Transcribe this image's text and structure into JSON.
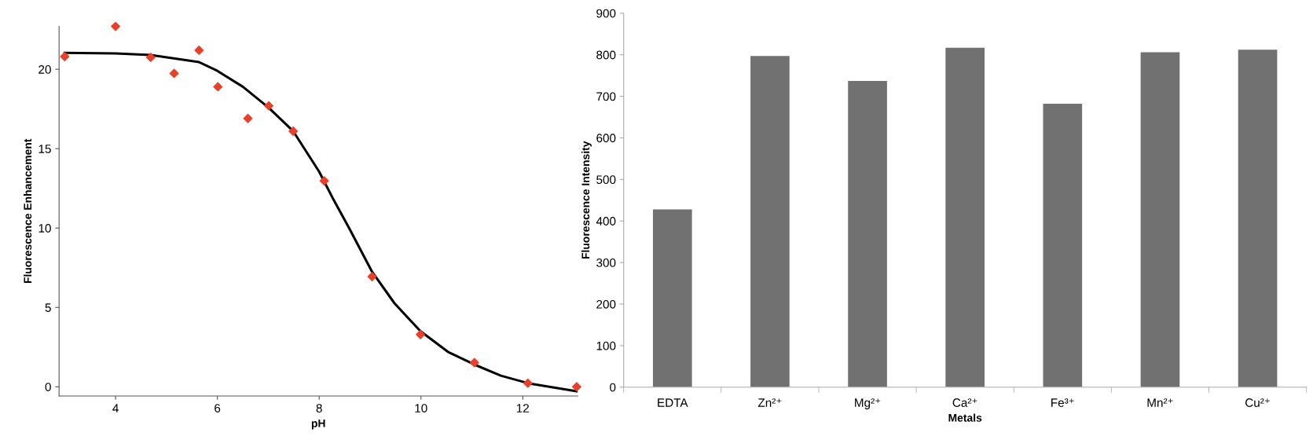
{
  "chart_data": [
    {
      "type": "scatter",
      "xlabel": "pH",
      "ylabel": "Fluorescence Enhancement",
      "xlim": [
        2.89,
        13.08
      ],
      "ylim": [
        -0.58,
        22.7
      ],
      "xticks": [
        4,
        6,
        8,
        10,
        12
      ],
      "yticks": [
        0,
        5,
        10,
        15,
        20
      ],
      "grid": false,
      "legend": false,
      "series": [
        {
          "type": "scatter",
          "marker": "diamond",
          "color": "#e8402a",
          "x": [
            3.0,
            4.0,
            4.69,
            5.15,
            5.64,
            6.01,
            6.6,
            7.01,
            7.49,
            8.1,
            9.04,
            9.99,
            11.05,
            12.1,
            13.06
          ],
          "values": [
            20.8,
            22.7,
            20.75,
            19.74,
            21.2,
            18.9,
            16.9,
            17.7,
            16.1,
            12.97,
            6.94,
            3.29,
            1.52,
            0.23,
            0
          ]
        },
        {
          "type": "line",
          "color": "#000000",
          "x": [
            3.0,
            4.0,
            4.69,
            5.64,
            6.0,
            6.5,
            7.0,
            7.49,
            8.0,
            8.28,
            8.58,
            9.04,
            9.48,
            9.99,
            10.53,
            11.05,
            11.57,
            12.1,
            13.06
          ],
          "values": [
            21.03,
            21.0,
            20.9,
            20.45,
            19.9,
            18.9,
            17.6,
            16.1,
            13.55,
            11.8,
            10.05,
            7.24,
            5.26,
            3.5,
            2.2,
            1.4,
            0.7,
            0.23,
            -0.28
          ]
        }
      ]
    },
    {
      "type": "bar",
      "xlabel": "Metals",
      "ylabel": "Fluorescence Intensity",
      "ylim": [
        0,
        900
      ],
      "yticks": [
        0,
        100,
        200,
        300,
        400,
        500,
        600,
        700,
        800,
        900
      ],
      "grid": false,
      "legend": false,
      "categories": [
        "EDTA",
        "Zn²⁺",
        "Mg²⁺",
        "Ca²⁺",
        "Fe³⁺",
        "Mn²⁺",
        "Cu²⁺"
      ],
      "values": [
        428,
        797,
        737,
        817,
        682,
        806,
        812
      ],
      "color": "#717171"
    }
  ]
}
